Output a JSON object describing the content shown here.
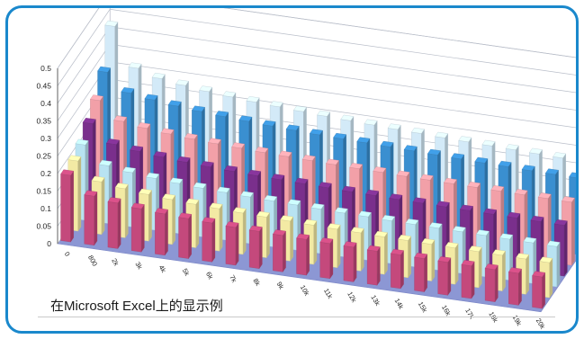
{
  "caption": "在Microsoft Excel上的显示例",
  "colors": {
    "frame": "#1a88cc",
    "floor": "#8c97d4",
    "wall_grid": "#b9bec9"
  },
  "chart_data": {
    "type": "bar",
    "subtype": "3d-column",
    "title": "",
    "xlabel": "",
    "ylabel": "",
    "ylim": [
      0,
      0.5
    ],
    "grid": true,
    "legend": "none",
    "y_ticks": [
      "0",
      "0.05",
      "0.1",
      "0.15",
      "0.2",
      "0.25",
      "0.3",
      "0.35",
      "0.4",
      "0.45",
      "0.5"
    ],
    "categories": [
      "0",
      "800",
      "2k",
      "3k",
      "4k",
      "5k",
      "6k",
      "7k",
      "8k",
      "9k",
      "10k",
      "11k",
      "12k",
      "13k",
      "14k",
      "15k",
      "16k",
      "17k",
      "18k",
      "19k",
      "20k"
    ],
    "series": [
      {
        "color": "#c4497c",
        "values": [
          0.19,
          0.14,
          0.13,
          0.123,
          0.118,
          0.114,
          0.111,
          0.108,
          0.106,
          0.104,
          0.102,
          0.1,
          0.099,
          0.097,
          0.096,
          0.095,
          0.094,
          0.093,
          0.092,
          0.091,
          0.09
        ]
      },
      {
        "color": "#f3eaa4",
        "values": [
          0.2,
          0.15,
          0.14,
          0.133,
          0.128,
          0.124,
          0.121,
          0.118,
          0.116,
          0.114,
          0.112,
          0.11,
          0.109,
          0.107,
          0.106,
          0.105,
          0.104,
          0.103,
          0.102,
          0.101,
          0.1
        ]
      },
      {
        "color": "#b8e3f2",
        "values": [
          0.215,
          0.165,
          0.155,
          0.148,
          0.143,
          0.139,
          0.136,
          0.133,
          0.131,
          0.129,
          0.127,
          0.125,
          0.124,
          0.122,
          0.121,
          0.12,
          0.119,
          0.118,
          0.117,
          0.116,
          0.115
        ]
      },
      {
        "color": "#7a2f8c",
        "values": [
          0.245,
          0.195,
          0.185,
          0.178,
          0.173,
          0.169,
          0.166,
          0.163,
          0.161,
          0.159,
          0.157,
          0.155,
          0.154,
          0.152,
          0.151,
          0.15,
          0.149,
          0.148,
          0.147,
          0.146,
          0.145
        ]
      },
      {
        "color": "#f2a0a8",
        "values": [
          0.28,
          0.23,
          0.22,
          0.213,
          0.208,
          0.204,
          0.201,
          0.198,
          0.196,
          0.194,
          0.192,
          0.19,
          0.189,
          0.187,
          0.186,
          0.185,
          0.184,
          0.183,
          0.182,
          0.181,
          0.18
        ]
      },
      {
        "color": "#3a8fd0",
        "values": [
          0.33,
          0.28,
          0.27,
          0.262,
          0.256,
          0.251,
          0.247,
          0.243,
          0.24,
          0.237,
          0.235,
          0.233,
          0.231,
          0.229,
          0.227,
          0.225,
          0.223,
          0.222,
          0.22,
          0.219,
          0.218
        ]
      },
      {
        "color": "#d3eaf8",
        "values": [
          0.43,
          0.32,
          0.3,
          0.29,
          0.282,
          0.276,
          0.271,
          0.267,
          0.263,
          0.259,
          0.256,
          0.253,
          0.25,
          0.248,
          0.245,
          0.243,
          0.241,
          0.239,
          0.237,
          0.235,
          0.233
        ]
      }
    ]
  }
}
